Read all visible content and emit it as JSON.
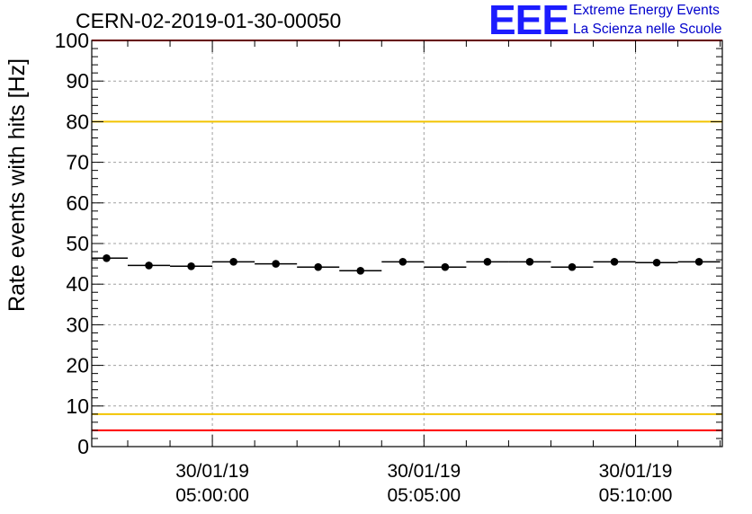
{
  "header": {
    "run_id": "CERN-02-2019-01-30-00050"
  },
  "logo": {
    "mark": "EEE",
    "line1": "Extreme Energy Events",
    "line2": "La Scienza nelle Scuole"
  },
  "colors": {
    "accent_logo": "#1c1cff",
    "limit_red": "#ff0000",
    "limit_yellow": "#f2c400",
    "marker": "#000000",
    "grid": "#a0a0a0"
  },
  "chart_data": {
    "type": "scatter",
    "title": "",
    "xlabel": "",
    "ylabel": "Rate events with hits [Hz]",
    "ylim": [
      0,
      100
    ],
    "yticks": [
      0,
      10,
      20,
      30,
      40,
      50,
      60,
      70,
      80,
      90,
      100
    ],
    "xlim_minutes": [
      -2.85,
      12.05
    ],
    "xticks": [
      {
        "minutes": 0,
        "date": "30/01/19",
        "time": "05:00:00"
      },
      {
        "minutes": 5,
        "date": "30/01/19",
        "time": "05:05:00"
      },
      {
        "minutes": 10,
        "date": "30/01/19",
        "time": "05:10:00"
      }
    ],
    "bin_width_minutes": 1,
    "series": [
      {
        "name": "rate",
        "x_minutes": [
          -2.5,
          -1.5,
          -0.5,
          0.5,
          1.5,
          2.5,
          3.5,
          4.5,
          5.5,
          6.5,
          7.5,
          8.5,
          9.5,
          10.5,
          11.5
        ],
        "values": [
          46.4,
          44.6,
          44.4,
          45.5,
          45.0,
          44.2,
          43.3,
          45.5,
          44.2,
          45.5,
          45.5,
          44.2,
          45.5,
          45.3,
          45.5
        ]
      }
    ],
    "reference_lines": [
      {
        "name": "upper-red-limit",
        "y": 100,
        "color": "#ff0000"
      },
      {
        "name": "upper-yellow-limit",
        "y": 80,
        "color": "#f2c400"
      },
      {
        "name": "lower-yellow-limit",
        "y": 8,
        "color": "#f2c400"
      },
      {
        "name": "lower-red-limit",
        "y": 4,
        "color": "#ff0000"
      }
    ],
    "grid": true
  }
}
